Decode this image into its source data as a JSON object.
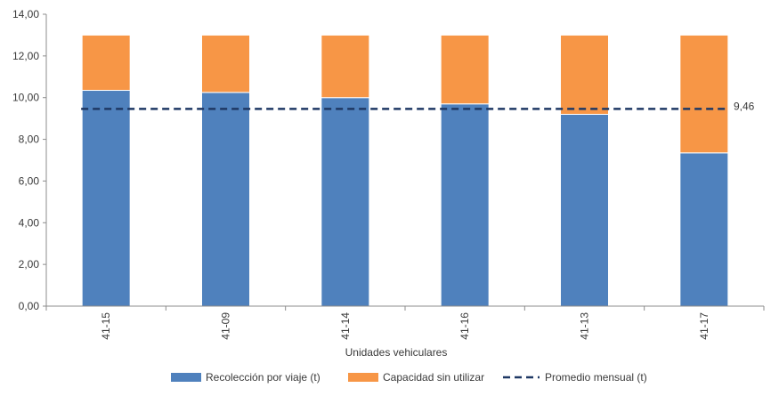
{
  "chart_data": {
    "type": "bar",
    "stacked": true,
    "title": "",
    "xlabel": "Unidades vehiculares",
    "ylabel": "",
    "categories": [
      "41-15",
      "41-09",
      "41-14",
      "41-16",
      "41-13",
      "41-17"
    ],
    "series": [
      {
        "name": "Recolección por viaje (t)",
        "values": [
          10.35,
          10.25,
          10.0,
          9.7,
          9.2,
          7.35
        ],
        "color": "#4F81BD"
      },
      {
        "name": "Capacidad sin utilizar",
        "values": [
          2.65,
          2.75,
          3.0,
          3.3,
          3.8,
          5.65
        ],
        "color": "#F79646"
      }
    ],
    "reference_line": {
      "name": "Promedio mensual (t)",
      "value": 9.46,
      "label": "9,46",
      "color": "#1F3864",
      "style": "dashed"
    },
    "ylim": [
      0,
      14
    ],
    "yticks": [
      "0,00",
      "2,00",
      "4,00",
      "6,00",
      "8,00",
      "10,00",
      "12,00",
      "14,00"
    ],
    "grid": false,
    "legend": "bottom"
  }
}
